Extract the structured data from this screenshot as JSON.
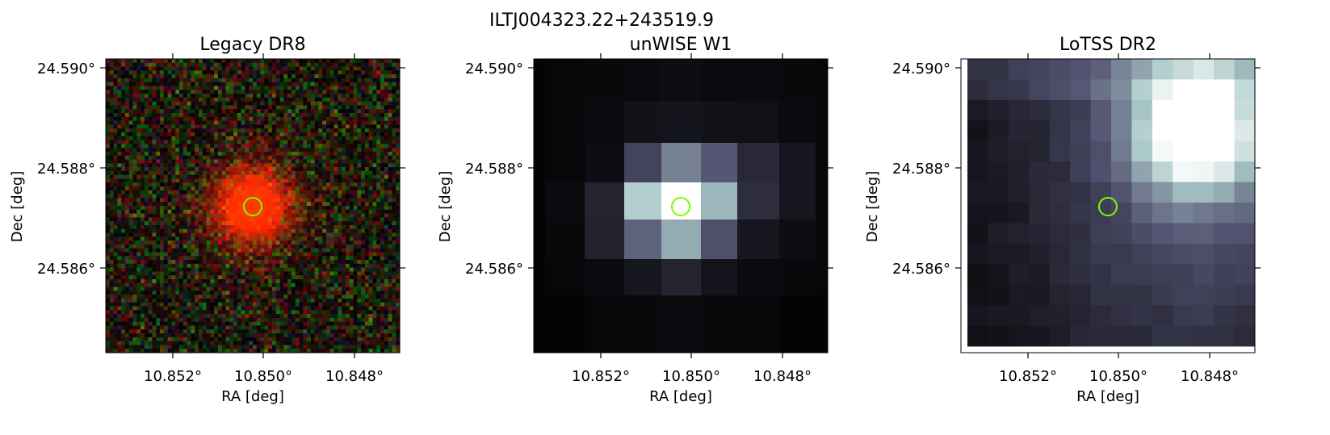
{
  "figure": {
    "suptitle": "ILTJ004323.22+243519.9"
  },
  "panels": [
    {
      "title": "Legacy DR8",
      "xlabel": "RA [deg]",
      "ylabel": "Dec [deg]",
      "xticks": [
        "10.852°",
        "10.850°",
        "10.848°"
      ],
      "yticks": [
        "24.590°",
        "24.588°",
        "24.586°"
      ],
      "colormap": "rgb-composite",
      "image_kind": "noisy red source"
    },
    {
      "title": "unWISE W1",
      "xlabel": "RA [deg]",
      "ylabel": "Dec [deg]",
      "xticks": [
        "10.852°",
        "10.850°",
        "10.848°"
      ],
      "yticks": [
        "24.590°",
        "24.588°",
        "24.586°"
      ],
      "colormap": "bone",
      "image_kind": "coarse pixel grid"
    },
    {
      "title": "LoTSS DR2",
      "xlabel": "RA [deg]",
      "ylabel": "Dec [deg]",
      "xticks": [
        "10.852°",
        "10.850°",
        "10.848°"
      ],
      "yticks": [
        "24.590°",
        "24.588°",
        "24.586°"
      ],
      "colormap": "bone",
      "image_kind": "radio map"
    }
  ],
  "marker": {
    "shape": "circle",
    "color": "#7cfc00",
    "ra": 10.8502,
    "dec": 24.5872
  }
}
